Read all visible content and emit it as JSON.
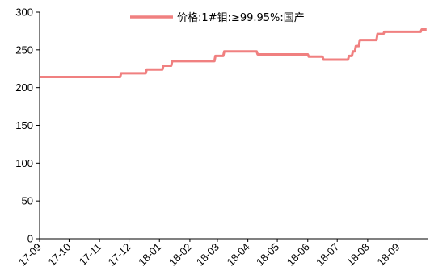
{
  "chart_data": {
    "type": "line",
    "series": [
      {
        "name": "价格:1#钼:≥99.95%:国产",
        "color": "#f08080",
        "points": [
          [
            "2017-09-01",
            214
          ],
          [
            "2017-11-22",
            214
          ],
          [
            "2017-11-23",
            219
          ],
          [
            "2017-12-18",
            219
          ],
          [
            "2017-12-19",
            224
          ],
          [
            "2018-01-04",
            224
          ],
          [
            "2018-01-05",
            229
          ],
          [
            "2018-01-13",
            229
          ],
          [
            "2018-01-14",
            235
          ],
          [
            "2018-02-26",
            235
          ],
          [
            "2018-02-27",
            242
          ],
          [
            "2018-03-07",
            242
          ],
          [
            "2018-03-08",
            248
          ],
          [
            "2018-04-10",
            248
          ],
          [
            "2018-04-11",
            244
          ],
          [
            "2018-06-01",
            244
          ],
          [
            "2018-06-02",
            241
          ],
          [
            "2018-06-16",
            241
          ],
          [
            "2018-06-17",
            237
          ],
          [
            "2018-07-12",
            237
          ],
          [
            "2018-07-13",
            242
          ],
          [
            "2018-07-16",
            242
          ],
          [
            "2018-07-17",
            248
          ],
          [
            "2018-07-19",
            248
          ],
          [
            "2018-07-20",
            255
          ],
          [
            "2018-07-23",
            255
          ],
          [
            "2018-07-24",
            263
          ],
          [
            "2018-08-10",
            263
          ],
          [
            "2018-08-11",
            271
          ],
          [
            "2018-08-17",
            271
          ],
          [
            "2018-08-18",
            274
          ],
          [
            "2018-09-24",
            274
          ],
          [
            "2018-09-25",
            277
          ],
          [
            "2018-09-30",
            277
          ]
        ]
      }
    ],
    "x_range": [
      "2017-09-01",
      "2018-10-01"
    ],
    "ylim": [
      0,
      300
    ],
    "yticks": [
      0,
      50,
      100,
      150,
      200,
      250,
      300
    ],
    "xticks": [
      {
        "date": "2017-09-01",
        "label": "17-09"
      },
      {
        "date": "2017-10-01",
        "label": "17-10"
      },
      {
        "date": "2017-11-01",
        "label": "17-11"
      },
      {
        "date": "2017-12-01",
        "label": "17-12"
      },
      {
        "date": "2018-01-01",
        "label": "18-01"
      },
      {
        "date": "2018-02-01",
        "label": "18-02"
      },
      {
        "date": "2018-03-01",
        "label": "18-03"
      },
      {
        "date": "2018-04-01",
        "label": "18-04"
      },
      {
        "date": "2018-05-01",
        "label": "18-05"
      },
      {
        "date": "2018-06-01",
        "label": "18-06"
      },
      {
        "date": "2018-07-01",
        "label": "18-07"
      },
      {
        "date": "2018-08-01",
        "label": "18-08"
      },
      {
        "date": "2018-09-01",
        "label": "18-09"
      }
    ],
    "grid": false,
    "legend": "top-center",
    "axis_color": "#000000"
  }
}
